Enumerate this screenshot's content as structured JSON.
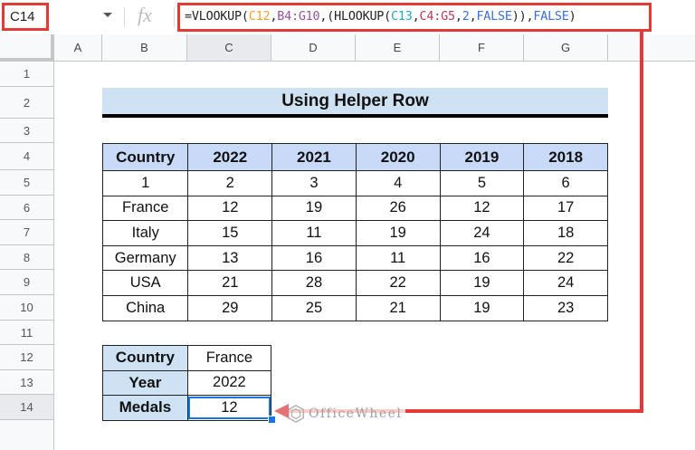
{
  "formula_bar": {
    "name_box": "C14",
    "fx_label": "fx",
    "formula_parts": [
      {
        "text": "=VLOOKUP(",
        "cls": ""
      },
      {
        "text": "C12",
        "cls": "f-c12"
      },
      {
        "text": ",",
        "cls": ""
      },
      {
        "text": "B4:G10",
        "cls": "f-b4"
      },
      {
        "text": ",(HLOOKUP(",
        "cls": ""
      },
      {
        "text": "C13",
        "cls": "f-c13"
      },
      {
        "text": ",",
        "cls": ""
      },
      {
        "text": "C4:G5",
        "cls": "f-c4"
      },
      {
        "text": ",",
        "cls": ""
      },
      {
        "text": "2",
        "cls": "f-blue"
      },
      {
        "text": ",",
        "cls": ""
      },
      {
        "text": "FALSE",
        "cls": "f-blue"
      },
      {
        "text": ")),",
        "cls": ""
      },
      {
        "text": "FALSE",
        "cls": "f-blue"
      },
      {
        "text": ")",
        "cls": ""
      }
    ],
    "formula_full": "=VLOOKUP(C12,B4:G10,(HLOOKUP(C13,C4:G5,2,FALSE)),FALSE)"
  },
  "columns": [
    "A",
    "B",
    "C",
    "D",
    "E",
    "F",
    "G"
  ],
  "rows": [
    "1",
    "2",
    "3",
    "4",
    "5",
    "6",
    "7",
    "8",
    "9",
    "10",
    "11",
    "12",
    "13",
    "14"
  ],
  "selected_cell": {
    "column": "C",
    "row": "14"
  },
  "title": "Using Helper Row",
  "main_table": {
    "headers": [
      "Country",
      "2022",
      "2021",
      "2020",
      "2019",
      "2018"
    ],
    "helper_row": [
      "1",
      "2",
      "3",
      "4",
      "5",
      "6"
    ],
    "rows": [
      [
        "France",
        "12",
        "19",
        "26",
        "12",
        "17"
      ],
      [
        "Italy",
        "15",
        "11",
        "19",
        "24",
        "18"
      ],
      [
        "Germany",
        "13",
        "16",
        "11",
        "16",
        "22"
      ],
      [
        "USA",
        "21",
        "28",
        "22",
        "19",
        "24"
      ],
      [
        "China",
        "29",
        "25",
        "21",
        "19",
        "23"
      ]
    ]
  },
  "lookup_table": {
    "rows": [
      {
        "label": "Country",
        "value": "France"
      },
      {
        "label": "Year",
        "value": "2022"
      },
      {
        "label": "Medals",
        "value": "12"
      }
    ]
  },
  "watermark": "OfficeWheel",
  "colors": {
    "annotation_red": "#e53935",
    "header_blue": "#c9daf8",
    "title_blue": "#cfe2f3",
    "selection_blue": "#1a73e8"
  }
}
